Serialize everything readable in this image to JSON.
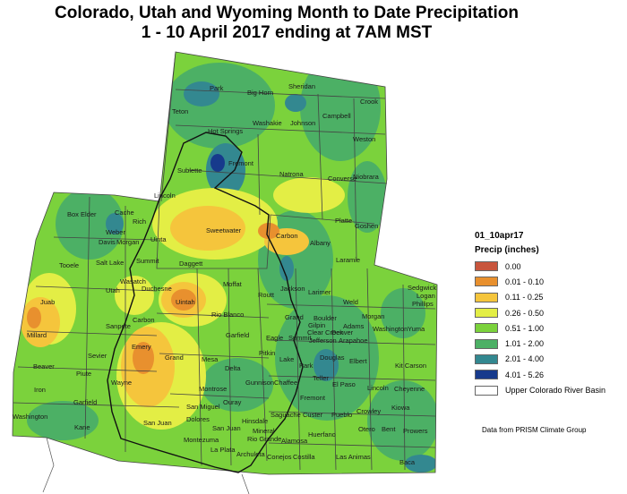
{
  "title": {
    "line1": "Colorado, Utah and Wyoming Month to Date Precipitation",
    "line2": "1 - 10 April 2017 ending at 7AM MST"
  },
  "legend": {
    "layer": "01_10apr17",
    "title": "Precip (inches)",
    "items": [
      {
        "label": "0.00",
        "color": "#c8553d"
      },
      {
        "label": "0.01 - 0.10",
        "color": "#e8902e"
      },
      {
        "label": "0.11 - 0.25",
        "color": "#f5c53c"
      },
      {
        "label": "0.26 - 0.50",
        "color": "#e3ee45"
      },
      {
        "label": "0.51 - 1.00",
        "color": "#7bd23c"
      },
      {
        "label": "1.01 - 2.00",
        "color": "#4cb065"
      },
      {
        "label": "2.01 - 4.00",
        "color": "#338890"
      },
      {
        "label": "4.01 - 5.26",
        "color": "#173a8c"
      },
      {
        "label": "Upper Colorado River Basin",
        "color": "#ffffff"
      }
    ]
  },
  "credit": "Data from PRISM Climate Group",
  "counties": {
    "wyoming": [
      "Park",
      "Big Horn",
      "Sheridan",
      "Crook",
      "Teton",
      "Washakie",
      "Johnson",
      "Campbell",
      "Hot Springs",
      "Weston",
      "Fremont",
      "Sublette",
      "Natrona",
      "Converse",
      "Niobrara",
      "Lincoln",
      "Sweetwater",
      "Carbon",
      "Platte",
      "Goshen",
      "Albany",
      "Laramie",
      "Uinta"
    ],
    "utah": [
      "Box Elder",
      "Cache",
      "Rich",
      "Weber",
      "Davis",
      "Morgan",
      "Salt Lake",
      "Summit",
      "Daggett",
      "Tooele",
      "Wasatch",
      "Utah",
      "Duchesne",
      "Uintah",
      "Juab",
      "Carbon",
      "Sanpete",
      "Millard",
      "Emery",
      "Sevier",
      "Grand",
      "Beaver",
      "Piute",
      "Wayne",
      "Iron",
      "Garfield",
      "Washington",
      "Kane",
      "San Juan"
    ],
    "colorado": [
      "Moffat",
      "Rio Blanco",
      "Routt",
      "Jackson",
      "Larimer",
      "Weld",
      "Logan",
      "Sedgwick",
      "Phillips",
      "Grand",
      "Boulder",
      "Morgan",
      "Garfield",
      "Eagle",
      "Summit",
      "Gilpin",
      "Clear Creek",
      "Denver",
      "Jefferson",
      "Arapahoe",
      "Adams",
      "Washington",
      "Yuma",
      "Mesa",
      "Pitkin",
      "Lake",
      "Park",
      "Douglas",
      "Elbert",
      "Delta",
      "Gunnison",
      "Chaffee",
      "Teller",
      "El Paso",
      "Lincoln",
      "Kit Carson",
      "Montrose",
      "Ouray",
      "Fremont",
      "Cheyenne",
      "San Miguel",
      "Hinsdale",
      "Saguache",
      "Custer",
      "Pueblo",
      "Crowley",
      "Kiowa",
      "Dolores",
      "San Juan",
      "Mineral",
      "Rio Grande",
      "Alamosa",
      "Huerfano",
      "Otero",
      "Bent",
      "Prowers",
      "Montezuma",
      "La Plata",
      "Archuleta",
      "Conejos",
      "Costilla",
      "Las Animas",
      "Baca"
    ]
  }
}
